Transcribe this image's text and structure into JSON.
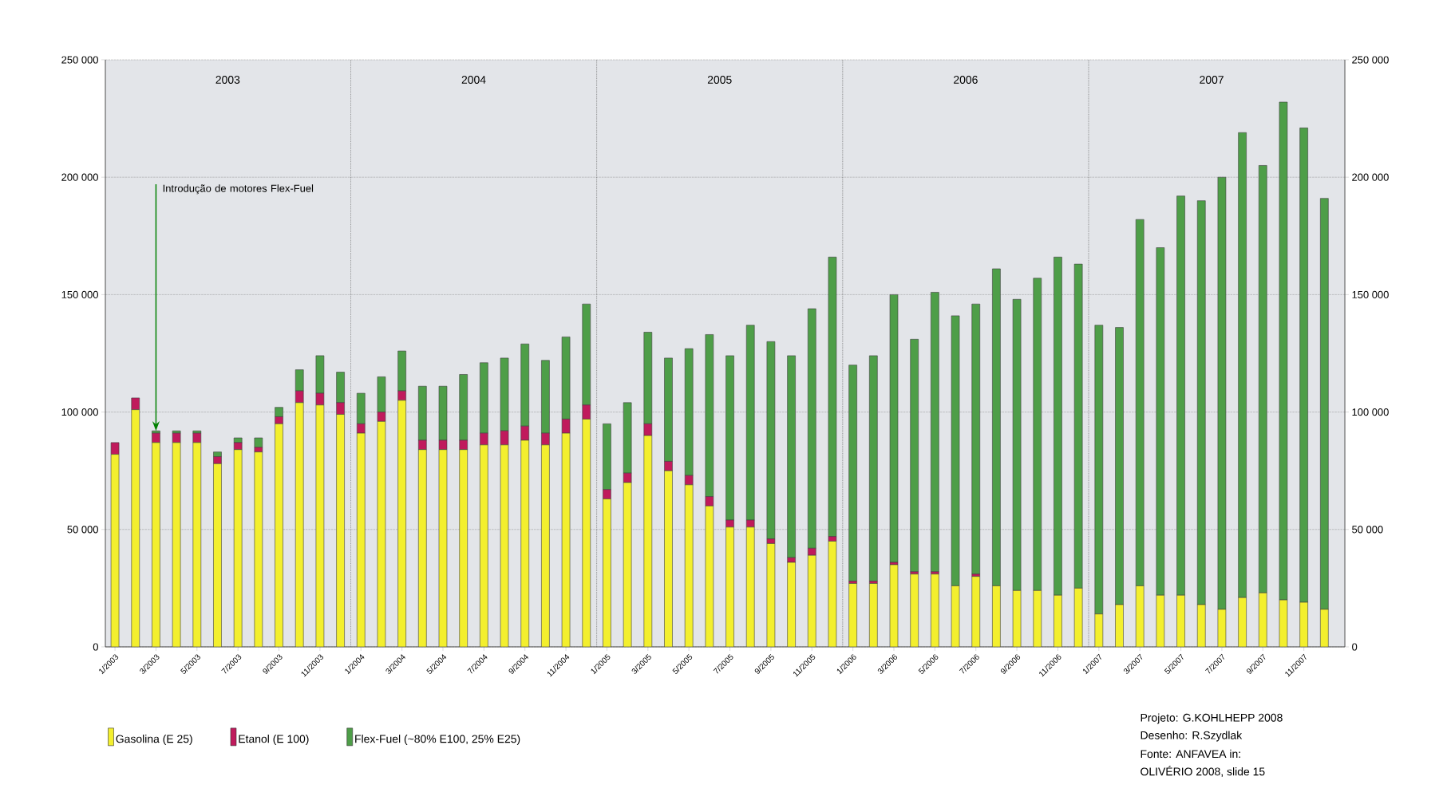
{
  "chart_data": {
    "type": "bar",
    "stacked": true,
    "categories": [
      "1/2003",
      null,
      "3/2003",
      null,
      "5/2003",
      null,
      "7/2003",
      null,
      "9/2003",
      null,
      "11/2003",
      null,
      "1/2004",
      null,
      "3/2004",
      null,
      "5/2004",
      null,
      "7/2004",
      null,
      "9/2004",
      null,
      "11/2004",
      null,
      "1/2005",
      null,
      "3/2005",
      null,
      "5/2005",
      null,
      "7/2005",
      null,
      "9/2005",
      null,
      "11/2005",
      null,
      "1/2006",
      null,
      "3/2006",
      null,
      "5/2006",
      null,
      "7/2006",
      null,
      "9/2006",
      null,
      "11/2006",
      null,
      "1/2007",
      null,
      "3/2007",
      null,
      "5/2007",
      null,
      "7/2007",
      null,
      "9/2007",
      null,
      "11/2007",
      null
    ],
    "series": [
      {
        "name": "Gasolina (E 25)",
        "color": "#f3ef2e",
        "values": [
          82000,
          101000,
          87000,
          87000,
          87000,
          78000,
          84000,
          83000,
          95000,
          104000,
          103000,
          99000,
          91000,
          96000,
          105000,
          84000,
          84000,
          84000,
          86000,
          86000,
          88000,
          86000,
          91000,
          97000,
          63000,
          70000,
          90000,
          75000,
          69000,
          60000,
          51000,
          51000,
          44000,
          36000,
          39000,
          45000,
          27000,
          27000,
          35000,
          31000,
          31000,
          26000,
          30000,
          26000,
          24000,
          24000,
          22000,
          25000,
          14000,
          18000,
          26000,
          22000,
          22000,
          18000,
          16000,
          21000,
          23000,
          20000,
          19000,
          16000
        ]
      },
      {
        "name": "Etanol (E 100)",
        "color": "#c01a5c",
        "values": [
          5000,
          5000,
          4000,
          4000,
          4000,
          3000,
          3000,
          2000,
          3000,
          5000,
          5000,
          5000,
          4000,
          4000,
          4000,
          4000,
          4000,
          4000,
          5000,
          6000,
          6000,
          5000,
          6000,
          6000,
          4000,
          4000,
          5000,
          4000,
          4000,
          4000,
          3000,
          3000,
          2000,
          2000,
          3000,
          2000,
          1000,
          1000,
          1000,
          1000,
          1000,
          0,
          1000,
          0,
          0,
          0,
          0,
          0,
          0,
          0,
          0,
          0,
          0,
          0,
          0,
          0,
          0,
          0,
          0,
          0
        ]
      },
      {
        "name": "Flex-Fuel (~80% E100, 25% E25)",
        "color": "#4e9e48",
        "values": [
          0,
          0,
          1000,
          1000,
          1000,
          2000,
          2000,
          4000,
          4000,
          9000,
          16000,
          13000,
          13000,
          15000,
          17000,
          23000,
          23000,
          28000,
          30000,
          31000,
          35000,
          31000,
          35000,
          43000,
          28000,
          30000,
          39000,
          44000,
          54000,
          69000,
          70000,
          83000,
          84000,
          86000,
          102000,
          119000,
          92000,
          96000,
          114000,
          99000,
          119000,
          115000,
          115000,
          135000,
          124000,
          133000,
          144000,
          138000,
          123000,
          118000,
          156000,
          148000,
          170000,
          172000,
          184000,
          198000,
          182000,
          212000,
          202000,
          175000
        ]
      }
    ],
    "ylim": [
      0,
      250000
    ],
    "yticks": [
      0,
      {
        "value": 50000,
        "label": "50 000"
      },
      {
        "value": 100000,
        "label": "100 000"
      },
      {
        "value": 150000,
        "label": "150 000"
      },
      {
        "value": 200000,
        "label": "200 000"
      },
      {
        "value": 250000,
        "label": "250 000"
      }
    ],
    "y2lim": [
      0,
      250000
    ],
    "y2ticks": [
      0,
      {
        "value": 50000,
        "label": "50 000"
      },
      {
        "value": 100000,
        "label": "100 000"
      },
      {
        "value": 150000,
        "label": "150 000"
      },
      {
        "value": 200000,
        "label": "200 000"
      },
      {
        "value": 250000,
        "label": "250 000"
      }
    ],
    "grid": "y",
    "legend": "bottom",
    "annotations": [
      {
        "text": "Introdução de motores Flex-Fuel",
        "x": "3/2003",
        "y": 92000
      },
      "2003",
      "2004",
      "2005",
      "2006",
      "2007",
      "Projeto: G.KOHLHEPP 2008",
      "Desenho: R.Szydlak",
      "Fonte: ANFAVEA in:",
      "OLIVÉRIO 2008, slide 15"
    ]
  }
}
